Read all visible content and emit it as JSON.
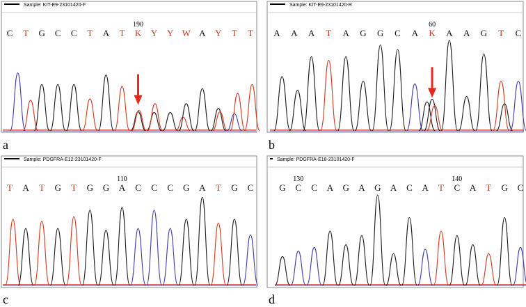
{
  "colors": {
    "black": "#1a1a1a",
    "red": "#d0371f",
    "blue": "#3a3aa8",
    "arrow": "#e8261c",
    "frame": "#7f7f7f"
  },
  "panels": [
    {
      "label": "a",
      "sample": "Sample: KIT-E9-23101420-F",
      "bases": [
        "C",
        "T",
        "G",
        "C",
        "C",
        "T",
        "A",
        "T",
        "K",
        "Y",
        "Y",
        "W",
        "A",
        "Y",
        "T",
        "T"
      ],
      "position": {
        "text": "190",
        "after_index": 8
      },
      "arrow_index": 8,
      "peaks": [
        {
          "c": "b",
          "h": 0.85,
          "x": 0.5
        },
        {
          "c": "r",
          "h": 0.45,
          "x": 1.3
        },
        {
          "c": "k",
          "h": 0.68,
          "x": 2.0
        },
        {
          "c": "k",
          "h": 0.68,
          "x": 3.0
        },
        {
          "c": "k",
          "h": 0.68,
          "x": 4.0
        },
        {
          "c": "r",
          "h": 0.47,
          "x": 5.0
        },
        {
          "c": "k",
          "h": 0.82,
          "x": 6.0
        },
        {
          "c": "r",
          "h": 0.65,
          "x": 7.0
        },
        {
          "c": "k",
          "h": 0.28,
          "x": 8.0
        },
        {
          "c": "r",
          "h": 0.3,
          "x": 8.05
        },
        {
          "c": "k",
          "h": 0.27,
          "x": 9.0
        },
        {
          "c": "r",
          "h": 0.4,
          "x": 9.05
        },
        {
          "c": "k",
          "h": 0.27,
          "x": 10.0
        },
        {
          "c": "r",
          "h": 0.2,
          "x": 10.8
        },
        {
          "c": "k",
          "h": 0.4,
          "x": 11.0
        },
        {
          "c": "k",
          "h": 0.62,
          "x": 12.0
        },
        {
          "c": "k",
          "h": 0.33,
          "x": 13.0
        },
        {
          "c": "r",
          "h": 0.28,
          "x": 13.1
        },
        {
          "c": "b",
          "h": 0.25,
          "x": 14.0
        },
        {
          "c": "r",
          "h": 0.55,
          "x": 14.2
        },
        {
          "c": "r",
          "h": 0.68,
          "x": 15.1
        }
      ]
    },
    {
      "label": "b",
      "sample": "Sample: KIT-E9-23101420-R",
      "bases": [
        "A",
        "A",
        "A",
        "T",
        "A",
        "G",
        "G",
        "C",
        "A",
        "K",
        "A",
        "A",
        "G",
        "T",
        "C"
      ],
      "position": {
        "text": "60",
        "after_index": 9
      },
      "arrow_index": 9,
      "peaks": [
        {
          "c": "k",
          "h": 0.6,
          "x": 0.3
        },
        {
          "c": "k",
          "h": 0.45,
          "x": 1.2
        },
        {
          "c": "k",
          "h": 0.82,
          "x": 2.0
        },
        {
          "c": "r",
          "h": 0.78,
          "x": 3.0
        },
        {
          "c": "k",
          "h": 0.82,
          "x": 4.0
        },
        {
          "c": "k",
          "h": 0.55,
          "x": 5.0
        },
        {
          "c": "k",
          "h": 0.95,
          "x": 6.0
        },
        {
          "c": "k",
          "h": 0.9,
          "x": 7.0
        },
        {
          "c": "b",
          "h": 0.52,
          "x": 8.0
        },
        {
          "c": "k",
          "h": 0.32,
          "x": 8.7
        },
        {
          "c": "k",
          "h": 0.35,
          "x": 9.0
        },
        {
          "c": "r",
          "h": 0.28,
          "x": 9.15
        },
        {
          "c": "k",
          "h": 1.0,
          "x": 10.0
        },
        {
          "c": "k",
          "h": 0.38,
          "x": 11.0
        },
        {
          "c": "k",
          "h": 0.85,
          "x": 12.0
        },
        {
          "c": "r",
          "h": 0.55,
          "x": 13.0
        },
        {
          "c": "k",
          "h": 0.3,
          "x": 13.2
        },
        {
          "c": "b",
          "h": 0.55,
          "x": 14.0
        }
      ]
    },
    {
      "label": "c",
      "sample": "Sample: PDGFRA-E12-23101420-F",
      "bases": [
        "T",
        "A",
        "T",
        "G",
        "T",
        "G",
        "G",
        "A",
        "C",
        "C",
        "C",
        "G",
        "A",
        "T",
        "G",
        "C"
      ],
      "position": {
        "text": "110",
        "after_index": 7
      },
      "arrow_index": null,
      "peaks": [
        {
          "c": "r",
          "h": 0.72,
          "x": 0.2
        },
        {
          "c": "k",
          "h": 0.62,
          "x": 1.0
        },
        {
          "c": "r",
          "h": 0.7,
          "x": 2.0
        },
        {
          "c": "k",
          "h": 0.62,
          "x": 3.0
        },
        {
          "c": "r",
          "h": 0.75,
          "x": 4.0
        },
        {
          "c": "k",
          "h": 0.82,
          "x": 5.0
        },
        {
          "c": "k",
          "h": 0.6,
          "x": 6.0
        },
        {
          "c": "k",
          "h": 0.85,
          "x": 7.0
        },
        {
          "c": "b",
          "h": 0.62,
          "x": 8.0
        },
        {
          "c": "b",
          "h": 0.82,
          "x": 9.0
        },
        {
          "c": "b",
          "h": 0.62,
          "x": 10.0
        },
        {
          "c": "k",
          "h": 0.72,
          "x": 11.0
        },
        {
          "c": "k",
          "h": 0.96,
          "x": 12.0
        },
        {
          "c": "r",
          "h": 0.68,
          "x": 13.0
        },
        {
          "c": "k",
          "h": 0.72,
          "x": 14.0
        },
        {
          "c": "b",
          "h": 0.55,
          "x": 15.0
        }
      ]
    },
    {
      "label": "d",
      "sample": "Sample: PDGFRA-E18-23101420-F",
      "bases": [
        "G",
        "C",
        "C",
        "A",
        "G",
        "A",
        "G",
        "A",
        "C",
        "A",
        "T",
        "C",
        "A",
        "T",
        "G",
        "C"
      ],
      "position": {
        "text": "130",
        "after_index": 1
      },
      "position2": {
        "text": "140",
        "after_index": 11
      },
      "arrow_index": null,
      "peaks": [
        {
          "c": "k",
          "h": 0.32,
          "x": 0.0
        },
        {
          "c": "b",
          "h": 0.38,
          "x": 1.0
        },
        {
          "c": "b",
          "h": 0.42,
          "x": 2.0
        },
        {
          "c": "k",
          "h": 0.6,
          "x": 3.0
        },
        {
          "c": "k",
          "h": 0.45,
          "x": 4.0
        },
        {
          "c": "k",
          "h": 0.55,
          "x": 5.0
        },
        {
          "c": "k",
          "h": 1.0,
          "x": 6.0
        },
        {
          "c": "k",
          "h": 0.35,
          "x": 7.0
        },
        {
          "c": "k",
          "h": 0.75,
          "x": 8.0
        },
        {
          "c": "b",
          "h": 0.4,
          "x": 9.0
        },
        {
          "c": "r",
          "h": 0.6,
          "x": 10.0
        },
        {
          "c": "k",
          "h": 0.55,
          "x": 11.0
        },
        {
          "c": "k",
          "h": 0.45,
          "x": 12.0
        },
        {
          "c": "r",
          "h": 0.35,
          "x": 13.0
        },
        {
          "c": "k",
          "h": 0.75,
          "x": 14.0
        },
        {
          "c": "b",
          "h": 0.42,
          "x": 15.0
        }
      ]
    }
  ]
}
